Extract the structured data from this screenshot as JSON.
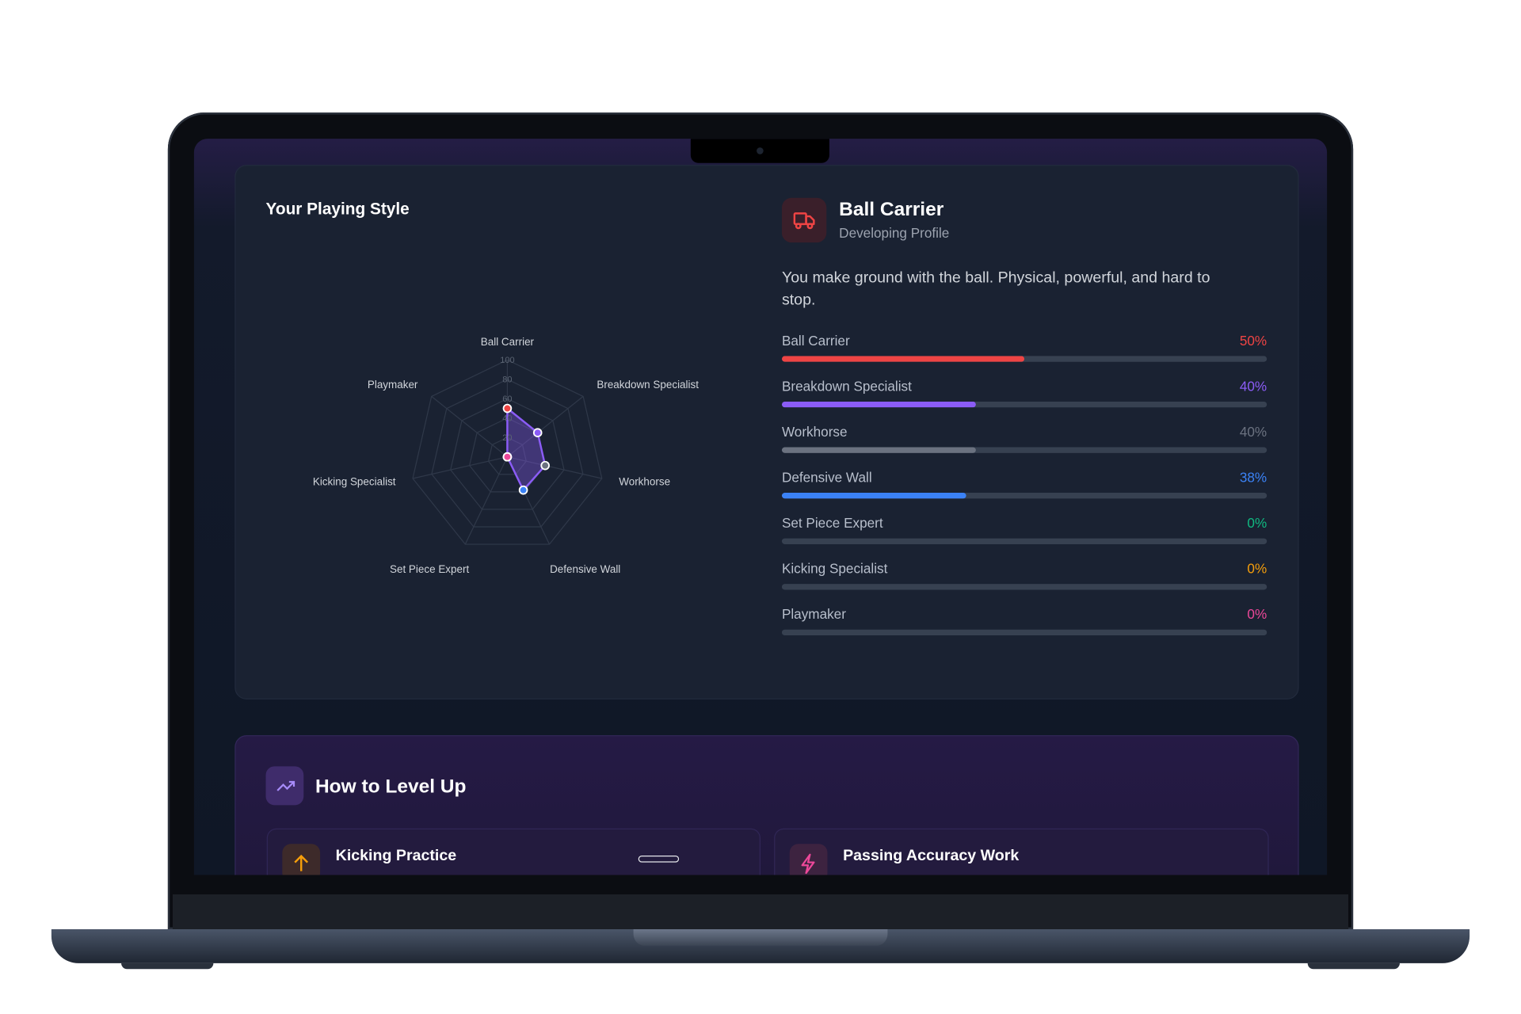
{
  "radar": {
    "title": "Your Playing Style",
    "type": "radar",
    "rlim": [
      0,
      100
    ],
    "rticks": [
      20,
      40,
      60,
      80,
      100
    ]
  },
  "profile": {
    "title": "Ball Carrier",
    "subtitle": "Developing Profile",
    "description": "You make ground with the ball. Physical, powerful, and hard to stop."
  },
  "styles": [
    {
      "name": "Ball Carrier",
      "value": 50,
      "value_label": "50%",
      "color": "#ef4444"
    },
    {
      "name": "Breakdown Specialist",
      "value": 40,
      "value_label": "40%",
      "color": "#8b5cf6"
    },
    {
      "name": "Workhorse",
      "value": 40,
      "value_label": "40%",
      "color": "#6b7280"
    },
    {
      "name": "Defensive Wall",
      "value": 38,
      "value_label": "38%",
      "color": "#3b82f6"
    },
    {
      "name": "Set Piece Expert",
      "value": 0,
      "value_label": "0%",
      "color": "#10b981"
    },
    {
      "name": "Kicking Specialist",
      "value": 0,
      "value_label": "0%",
      "color": "#f59e0b"
    },
    {
      "name": "Playmaker",
      "value": 0,
      "value_label": "0%",
      "color": "#ec4899"
    }
  ],
  "level_up": {
    "title": "How to Level Up",
    "items": [
      {
        "title": "Kicking Practice"
      },
      {
        "title": "Passing Accuracy Work"
      }
    ]
  }
}
